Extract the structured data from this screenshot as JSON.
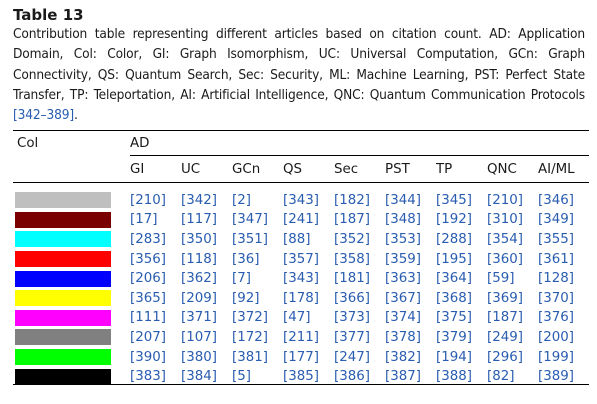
{
  "table_label": "Table 13",
  "caption_before": "Contribution table representing different articles based on citation count. AD: Application Domain, Col: Color, GI: Graph Isomorphism, UC: Universal Computation, GCn: Graph Connectivity, QS: Quantum Search, Sec: Security, ML: Machine Learning, PST: Perfect State Transfer, TP: Teleportation, AI: Artificial Intelligence, QNC: Quantum Communication Protocols ",
  "caption_ref": "[342–389]",
  "caption_after": ".",
  "header": {
    "col_label": "Col",
    "group_label": "AD",
    "columns": [
      "GI",
      "UC",
      "GCn",
      "QS",
      "Sec",
      "PST",
      "TP",
      "QNC",
      "AI/ML"
    ]
  },
  "rows": [
    {
      "color": "#bfbfbf",
      "cells": [
        "[210]",
        "[342]",
        "[2]",
        "[343]",
        "[182]",
        "[344]",
        "[345]",
        "[210]",
        "[346]"
      ]
    },
    {
      "color": "#7a0000",
      "cells": [
        "[17]",
        "[117]",
        "[347]",
        "[241]",
        "[187]",
        "[348]",
        "[192]",
        "[310]",
        "[349]"
      ]
    },
    {
      "color": "#00ffff",
      "cells": [
        "[283]",
        "[350]",
        "[351]",
        "[88]",
        "[352]",
        "[353]",
        "[288]",
        "[354]",
        "[355]"
      ]
    },
    {
      "color": "#ff0000",
      "cells": [
        "[356]",
        "[118]",
        "[36]",
        "[357]",
        "[358]",
        "[359]",
        "[195]",
        "[360]",
        "[361]"
      ]
    },
    {
      "color": "#0000ff",
      "cells": [
        "[206]",
        "[362]",
        "[7]",
        "[343]",
        "[181]",
        "[363]",
        "[364]",
        "[59]",
        "[128]"
      ]
    },
    {
      "color": "#ffff00",
      "cells": [
        "[365]",
        "[209]",
        "[92]",
        "[178]",
        "[366]",
        "[367]",
        "[368]",
        "[369]",
        "[370]"
      ]
    },
    {
      "color": "#ff00ff",
      "cells": [
        "[111]",
        "[371]",
        "[372]",
        "[47]",
        "[373]",
        "[374]",
        "[375]",
        "[187]",
        "[376]"
      ]
    },
    {
      "color": "#808080",
      "cells": [
        "[207]",
        "[107]",
        "[172]",
        "[211]",
        "[377]",
        "[378]",
        "[379]",
        "[249]",
        "[200]"
      ]
    },
    {
      "color": "#00ff00",
      "cells": [
        "[390]",
        "[380]",
        "[381]",
        "[177]",
        "[247]",
        "[382]",
        "[194]",
        "[296]",
        "[199]"
      ]
    },
    {
      "color": "#000000",
      "cells": [
        "[383]",
        "[384]",
        "[5]",
        "[385]",
        "[386]",
        "[387]",
        "[388]",
        "[82]",
        "[389]"
      ]
    }
  ]
}
